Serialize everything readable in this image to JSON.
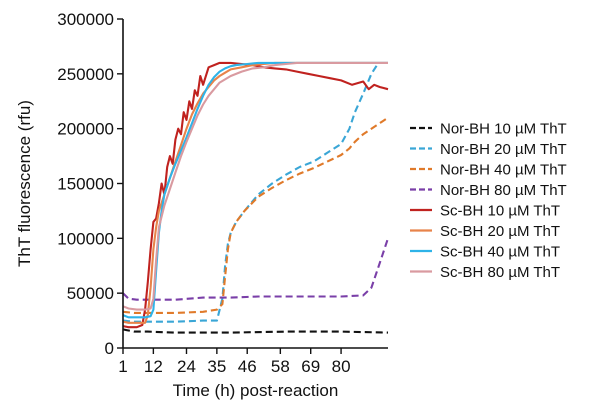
{
  "chart_data": {
    "type": "line",
    "xlabel": "Time (h) post-reaction",
    "ylabel": "ThT fluorescence (rfu)",
    "xlim": [
      1,
      97
    ],
    "ylim": [
      0,
      300000
    ],
    "x_ticks": [
      1,
      12,
      24,
      35,
      46,
      58,
      69,
      80
    ],
    "x_tick_labels": [
      "1",
      "12",
      "24",
      "35",
      "46",
      "58",
      "69",
      "80"
    ],
    "y_ticks": [
      0,
      50000,
      100000,
      150000,
      200000,
      250000,
      300000
    ],
    "y_tick_labels": [
      "0",
      "50000",
      "100000",
      "150000",
      "200000",
      "250000",
      "300000"
    ],
    "legend_position": "right",
    "series": [
      {
        "name": "Nor-BH 10 µM ThT",
        "color": "#111111",
        "dash": true,
        "x": [
          1,
          5,
          10,
          20,
          40,
          60,
          80,
          97
        ],
        "y": [
          17000,
          15000,
          15000,
          14000,
          14000,
          15000,
          15000,
          14000
        ]
      },
      {
        "name": "Nor-BH 20 µM ThT",
        "color": "#3aa6d6",
        "dash": true,
        "x": [
          1,
          5,
          10,
          20,
          30,
          35,
          37,
          38,
          39,
          40,
          42,
          45,
          50,
          55,
          60,
          65,
          70,
          75,
          80,
          83,
          85,
          88,
          91,
          93
        ],
        "y": [
          25000,
          24000,
          24000,
          24000,
          25000,
          25000,
          45000,
          75000,
          95000,
          105000,
          115000,
          125000,
          140000,
          150000,
          158000,
          165000,
          170000,
          178000,
          186000,
          200000,
          215000,
          232000,
          250000,
          258000
        ]
      },
      {
        "name": "Nor-BH 40 µM ThT",
        "color": "#e07a2a",
        "dash": true,
        "x": [
          1,
          5,
          10,
          20,
          30,
          35,
          37,
          38,
          39,
          40,
          42,
          45,
          50,
          55,
          60,
          65,
          70,
          75,
          80,
          83,
          85,
          88,
          91,
          94,
          97
        ],
        "y": [
          33000,
          32000,
          32000,
          32000,
          33000,
          35000,
          40000,
          65000,
          90000,
          105000,
          115000,
          125000,
          138000,
          146000,
          153000,
          159000,
          164000,
          170000,
          176000,
          182000,
          188000,
          195000,
          200000,
          205000,
          210000
        ]
      },
      {
        "name": "Nor-BH 80 µM ThT",
        "color": "#7a3fa8",
        "dash": true,
        "x": [
          1,
          3,
          6,
          10,
          20,
          30,
          40,
          50,
          60,
          70,
          80,
          88,
          91,
          93,
          95,
          97
        ],
        "y": [
          50000,
          45000,
          44000,
          44000,
          44000,
          46000,
          46000,
          47000,
          47000,
          47000,
          47000,
          48000,
          55000,
          70000,
          85000,
          100000
        ]
      },
      {
        "name": "Sc-BH 10 µM ThT",
        "color": "#c0221f",
        "dash": false,
        "x": [
          1,
          3,
          6,
          8,
          9,
          10,
          11,
          12,
          13,
          14,
          15,
          16,
          17,
          18,
          19,
          20,
          21,
          22,
          23,
          24,
          25,
          26,
          27,
          28,
          29,
          30,
          32,
          34,
          36,
          38,
          40,
          44,
          48,
          52,
          56,
          60,
          64,
          68,
          72,
          76,
          80,
          84,
          88,
          90,
          92,
          94,
          97
        ],
        "y": [
          20000,
          19000,
          19000,
          21000,
          35000,
          60000,
          90000,
          115000,
          118000,
          132000,
          150000,
          140000,
          165000,
          175000,
          168000,
          190000,
          200000,
          195000,
          215000,
          208000,
          225000,
          218000,
          235000,
          230000,
          248000,
          240000,
          256000,
          258000,
          260000,
          260000,
          260000,
          259000,
          258000,
          256000,
          255000,
          254000,
          252000,
          250000,
          248000,
          246000,
          244000,
          240000,
          243000,
          236000,
          240000,
          238000,
          236000
        ]
      },
      {
        "name": "Sc-BH 20 µM ThT",
        "color": "#e8834a",
        "dash": false,
        "x": [
          1,
          3,
          6,
          9,
          10,
          11,
          12,
          13,
          14,
          16,
          18,
          20,
          22,
          24,
          26,
          28,
          30,
          32,
          34,
          36,
          38,
          40,
          44,
          48,
          52,
          56,
          60,
          70,
          80,
          90,
          97
        ],
        "y": [
          24000,
          23000,
          23000,
          23000,
          30000,
          55000,
          90000,
          110000,
          125000,
          140000,
          155000,
          170000,
          185000,
          200000,
          213000,
          223000,
          232000,
          238000,
          244000,
          248000,
          251000,
          254000,
          256000,
          258000,
          259000,
          260000,
          260000,
          260000,
          260000,
          260000,
          260000
        ]
      },
      {
        "name": "Sc-BH 40 µM ThT",
        "color": "#2eb3e8",
        "dash": false,
        "x": [
          1,
          3,
          6,
          9,
          11,
          12,
          13,
          14,
          15,
          16,
          18,
          20,
          22,
          24,
          26,
          28,
          30,
          32,
          34,
          36,
          38,
          40,
          42,
          46,
          50,
          55,
          60,
          70,
          80,
          90,
          97
        ],
        "y": [
          30000,
          28000,
          28000,
          28000,
          29000,
          35000,
          70000,
          105000,
          125000,
          140000,
          155000,
          168000,
          180000,
          192000,
          205000,
          218000,
          230000,
          240000,
          247000,
          252000,
          255000,
          257000,
          258000,
          259000,
          260000,
          260000,
          260000,
          260000,
          260000,
          260000,
          260000
        ]
      },
      {
        "name": "Sc-BH 80 µM ThT",
        "color": "#d99aa0",
        "dash": false,
        "x": [
          1,
          3,
          6,
          9,
          11,
          12,
          13,
          14,
          16,
          18,
          20,
          22,
          24,
          26,
          28,
          30,
          32,
          34,
          36,
          40,
          44,
          48,
          52,
          56,
          60,
          64,
          70,
          80,
          90,
          97
        ],
        "y": [
          38000,
          36000,
          35000,
          35000,
          36000,
          45000,
          80000,
          110000,
          130000,
          145000,
          160000,
          175000,
          188000,
          200000,
          212000,
          222000,
          230000,
          236000,
          242000,
          248000,
          252000,
          255000,
          256000,
          258000,
          259000,
          260000,
          260000,
          260000,
          260000,
          260000
        ]
      }
    ]
  }
}
